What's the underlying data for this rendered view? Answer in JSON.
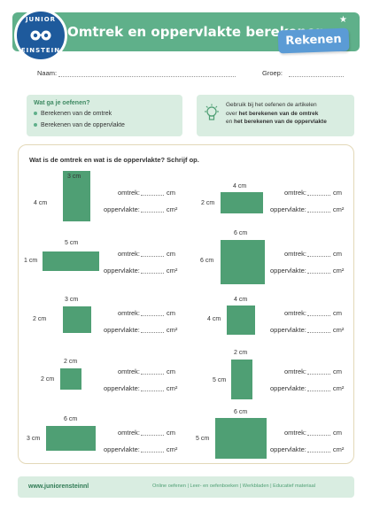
{
  "header": {
    "title": "Omtrek en oppervlakte berekenen",
    "tag": "Rekenen",
    "logo": {
      "top": "JUNIOR",
      "bottom": "EINSTEIN"
    }
  },
  "fields": {
    "name_label": "Naam:",
    "group_label": "Groep:"
  },
  "goal": {
    "title": "Wat ga je oefenen?",
    "items": [
      "Berekenen van de omtrek",
      "Berekenen van de oppervlakte"
    ]
  },
  "tip": {
    "line1": "Gebruik bij het oefenen de artikelen",
    "line2_pre": "over ",
    "line2_bold": "het berekenen van de omtrek",
    "line3_pre": "en ",
    "line3_bold": "het berekenen van de oppervlakte"
  },
  "question": "Wat is de omtrek en wat is de oppervlakte? Schrijf op.",
  "labels": {
    "omtrek": "omtrek:",
    "oppervlakte": "oppervlakte:",
    "unit": "cm",
    "unit2": "cm²"
  },
  "exercises": [
    {
      "width": "3 cm",
      "height": "4 cm"
    },
    {
      "width": "4 cm",
      "height": "2 cm"
    },
    {
      "width": "5 cm",
      "height": "1 cm"
    },
    {
      "width": "6 cm",
      "height": "6 cm"
    },
    {
      "width": "3 cm",
      "height": "2 cm"
    },
    {
      "width": "4 cm",
      "height": "4 cm"
    },
    {
      "width": "2 cm",
      "height": "2 cm"
    },
    {
      "width": "2 cm",
      "height": "5 cm"
    },
    {
      "width": "6 cm",
      "height": "3 cm"
    },
    {
      "width": "6 cm",
      "height": "5 cm"
    }
  ],
  "footer": {
    "site": "www.juniorensteinnl",
    "links": "Online oefenen  |  Leer- en oefenboeken  |  Werkbladen  |  Educatief materiaal"
  },
  "colors": {
    "green": "#5fb08a",
    "shape": "#4f9f74",
    "blue": "#5b9bd5",
    "light": "#d9ede1"
  }
}
